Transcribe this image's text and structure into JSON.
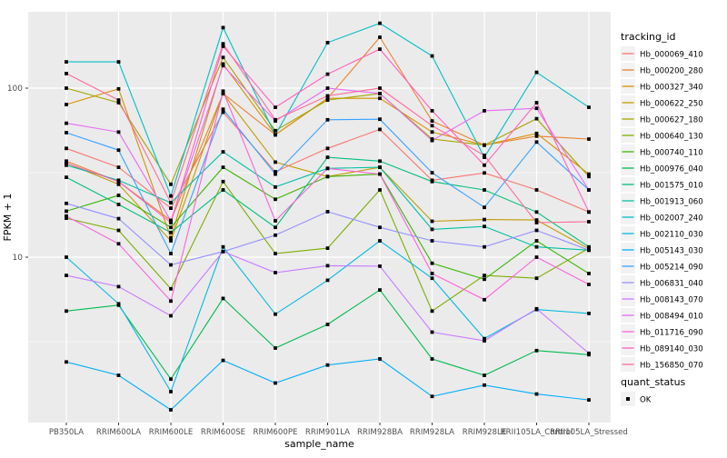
{
  "chart_data": {
    "type": "line",
    "title": "",
    "xlabel": "sample_name",
    "ylabel": "FPKM + 1",
    "y_scale": "log10",
    "ylim": [
      1.05,
      285
    ],
    "y_major_ticks": [
      10,
      100
    ],
    "y_tick_labels": [
      "10",
      "100"
    ],
    "y_minor_gridlines": [
      3.1623,
      31.623
    ],
    "grid": true,
    "legend_position": "right",
    "legend_title": "tracking_id",
    "quant_legend": {
      "title": "quant_status",
      "items": [
        {
          "label": "OK",
          "marker": "black-square"
        }
      ]
    },
    "panel_color": "#EBEBEB",
    "grid_color": "#FFFFFF",
    "marker_color": "#000000",
    "tick_text_color": "#4D4D4D",
    "categories": [
      "PB350LA",
      "RRIM600LA",
      "RRIM600LE",
      "RRIM600SE",
      "RRIM600PE",
      "RRIM901LA",
      "RRIM928BA",
      "RRIM928LA",
      "RRIM928LE",
      "RRII105LA_Control",
      "RRII105LA_Stressed"
    ],
    "series": [
      {
        "name": "Hb_000069_410",
        "color": "#F8766D",
        "values": [
          44,
          34,
          19.5,
          72,
          32,
          44,
          57,
          28.5,
          31.5,
          25,
          18.5
        ]
      },
      {
        "name": "Hb_000200_280",
        "color": "#EA8331",
        "values": [
          37,
          28,
          16.5,
          93,
          53,
          87,
          200,
          64,
          46,
          52,
          50
        ]
      },
      {
        "name": "Hb_000327_340",
        "color": "#D89000",
        "values": [
          80,
          99,
          13,
          139,
          53,
          87,
          87,
          55,
          46,
          54,
          31
        ]
      },
      {
        "name": "Hb_000622_250",
        "color": "#C09B00",
        "values": [
          36,
          27,
          12.5,
          93,
          36.5,
          30,
          34,
          16.3,
          16.7,
          16.6,
          11.2
        ]
      },
      {
        "name": "Hb_000627_180",
        "color": "#A3A500",
        "values": [
          100,
          82,
          27,
          152,
          56,
          85,
          93,
          50,
          46,
          66,
          30
        ]
      },
      {
        "name": "Hb_000640_130",
        "color": "#7CAE00",
        "values": [
          17,
          14.4,
          6.5,
          28,
          10.5,
          11.3,
          25,
          4.8,
          7.8,
          7.5,
          11.3
        ]
      },
      {
        "name": "Hb_000740_110",
        "color": "#39B600",
        "values": [
          18.7,
          23.2,
          15,
          34,
          22,
          30,
          31,
          9.2,
          7.4,
          12.5,
          8
        ]
      },
      {
        "name": "Hb_000976_040",
        "color": "#00BB4E",
        "values": [
          4.8,
          5.2,
          1.9,
          5.7,
          2.9,
          4,
          6.4,
          2.5,
          2,
          2.8,
          2.65
        ]
      },
      {
        "name": "Hb_001575_010",
        "color": "#00BF7D",
        "values": [
          29.7,
          20.5,
          14,
          25,
          15,
          39,
          37,
          28,
          25,
          18.5,
          11.5
        ]
      },
      {
        "name": "Hb_001913_060",
        "color": "#00C1A3",
        "values": [
          35,
          28.5,
          21,
          42,
          26,
          33.5,
          34,
          14.6,
          15.2,
          11.5,
          11
        ]
      },
      {
        "name": "Hb_002007_240",
        "color": "#00BFC4",
        "values": [
          143,
          143,
          23,
          228,
          53,
          186,
          242,
          155,
          39,
          124,
          77
        ]
      },
      {
        "name": "Hb_002110_030",
        "color": "#00BAE0",
        "values": [
          10,
          5.3,
          1.6,
          11.5,
          4.6,
          7.3,
          12.5,
          7.5,
          3.3,
          4.9,
          4.65
        ]
      },
      {
        "name": "Hb_005143_030",
        "color": "#00B0F6",
        "values": [
          2.4,
          2,
          1.25,
          2.45,
          1.8,
          2.3,
          2.5,
          1.5,
          1.75,
          1.55,
          1.43
        ]
      },
      {
        "name": "Hb_005214_090",
        "color": "#35A2FF",
        "values": [
          54.5,
          43,
          10.5,
          75,
          31,
          65,
          65.5,
          31.6,
          19.7,
          48,
          25
        ]
      },
      {
        "name": "Hb_006831_040",
        "color": "#9590FF",
        "values": [
          20.8,
          16.9,
          9,
          10.8,
          13.5,
          18.6,
          15,
          12.5,
          11.5,
          14.4,
          11
        ]
      },
      {
        "name": "Hb_008143_070",
        "color": "#C77CFF",
        "values": [
          7.8,
          6.7,
          4.5,
          10.8,
          8.1,
          8.9,
          8.85,
          3.6,
          3.2,
          4.95,
          2.7
        ]
      },
      {
        "name": "Hb_008494_010",
        "color": "#E76BF3",
        "values": [
          62,
          55,
          16.4,
          136,
          64,
          100,
          93,
          49,
          73.5,
          76,
          25
        ]
      },
      {
        "name": "Hb_011716_090",
        "color": "#FA62DB",
        "values": [
          17.5,
          12,
          5.5,
          96,
          16.4,
          33.5,
          31,
          8,
          5.6,
          10,
          6.9
        ]
      },
      {
        "name": "Hb_089140_030",
        "color": "#FF62BC",
        "values": [
          36,
          28,
          16,
          177,
          77,
          121,
          170,
          73.5,
          35,
          82,
          18.5
        ]
      },
      {
        "name": "Hb_156850_070",
        "color": "#FF6A98",
        "values": [
          122,
          85,
          21,
          183,
          65,
          90,
          100,
          60,
          40,
          16,
          16.2
        ]
      }
    ]
  }
}
